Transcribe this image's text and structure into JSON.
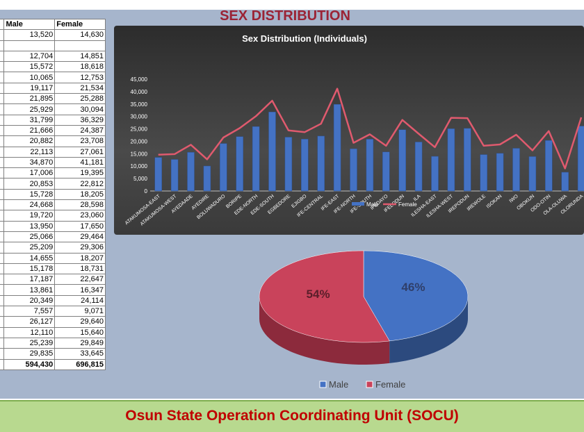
{
  "title": "SEX DISTRIBUTION",
  "footer": "Osun State Operation Coordinating Unit (SOCU)",
  "table": {
    "headers": [
      "Male",
      "Female"
    ],
    "rows": [
      [
        "13,520",
        "14,630"
      ],
      [
        "",
        ""
      ],
      [
        "12,704",
        "14,851"
      ],
      [
        "15,572",
        "18,618"
      ],
      [
        "10,065",
        "12,753"
      ],
      [
        "19,117",
        "21,534"
      ],
      [
        "21,895",
        "25,288"
      ],
      [
        "25,929",
        "30,094"
      ],
      [
        "31,799",
        "36,329"
      ],
      [
        "21,666",
        "24,387"
      ],
      [
        "20,882",
        "23,708"
      ],
      [
        "22,113",
        "27,061"
      ],
      [
        "34,870",
        "41,181"
      ],
      [
        "17,006",
        "19,395"
      ],
      [
        "20,853",
        "22,812"
      ],
      [
        "15,728",
        "18,205"
      ],
      [
        "24,668",
        "28,598"
      ],
      [
        "19,720",
        "23,060"
      ],
      [
        "13,950",
        "17,650"
      ],
      [
        "25,066",
        "29,464"
      ],
      [
        "25,209",
        "29,306"
      ],
      [
        "14,655",
        "18,207"
      ],
      [
        "15,178",
        "18,731"
      ],
      [
        "17,187",
        "22,647"
      ],
      [
        "13,861",
        "16,347"
      ],
      [
        "20,349",
        "24,114"
      ],
      [
        "7,557",
        "9,071"
      ],
      [
        "26,127",
        "29,640"
      ],
      [
        "12,110",
        "15,640"
      ],
      [
        "25,239",
        "29,849"
      ],
      [
        "29,835",
        "33,645"
      ]
    ],
    "total": [
      "594,430",
      "696,815"
    ]
  },
  "chart_data": [
    {
      "type": "bar",
      "title": "Sex Distribution (Individuals)",
      "categories": [
        "ATAKUMOSA-EAST",
        "ATAKUMOSA-WEST",
        "AYEDAADE",
        "AYEDIRE",
        "BOLUWADURO",
        "BORIPE",
        "EDE-NORTH",
        "EDE-SOUTH",
        "EGBEDORE",
        "EJIGBO",
        "IFE-CENTRAL",
        "IFE-EAST",
        "IFE-NORTH",
        "IFE-SOUTH",
        "IFEDAYO",
        "IFELODUN",
        "ILA",
        "ILESHA-EAST",
        "ILESHA-WEST",
        "IREPODUN",
        "IREWOLE",
        "ISOKAN",
        "IWO",
        "OBOKUN",
        "ODO-OTIN",
        "OLA-OLUWA",
        "OLORUNDA"
      ],
      "series": [
        {
          "name": "Male",
          "type": "bar",
          "color": "#4472c4",
          "values": [
            13520,
            12704,
            15572,
            10065,
            19117,
            21895,
            25929,
            31799,
            21666,
            20882,
            22113,
            34870,
            17006,
            20853,
            15728,
            24668,
            19720,
            13950,
            25066,
            25209,
            14655,
            15178,
            17187,
            13861,
            20349,
            7557,
            26127
          ]
        },
        {
          "name": "Female",
          "type": "line",
          "color": "#e05a6e",
          "values": [
            14630,
            14851,
            18618,
            12753,
            21534,
            25288,
            30094,
            36329,
            24387,
            23708,
            27061,
            41181,
            19395,
            22812,
            18205,
            28598,
            23060,
            17650,
            29464,
            29306,
            18207,
            18731,
            22647,
            16347,
            24114,
            9071,
            29640
          ]
        }
      ],
      "yticks": [
        "0",
        "5,000",
        "10,000",
        "15,000",
        "20,000",
        "25,000",
        "30,000",
        "35,000",
        "40,000",
        "45,000"
      ],
      "ylim": [
        0,
        45000
      ],
      "legend": "bottom"
    },
    {
      "type": "pie",
      "categories": [
        "Male",
        "Female"
      ],
      "values": [
        46,
        54
      ],
      "labels": [
        "46%",
        "54%"
      ],
      "colors": [
        "#4472c4",
        "#c9435b"
      ],
      "legend": "bottom"
    }
  ]
}
